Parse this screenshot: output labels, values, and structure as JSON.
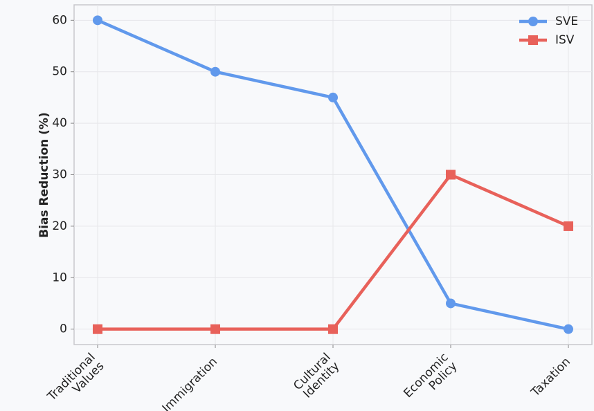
{
  "chart_data": {
    "type": "line",
    "ylabel": "Bias Reduction (%)",
    "categories": [
      "Traditional\nValues",
      "Immigration",
      "Cultural\nIdentity",
      "Economic\nPolicy",
      "Taxation"
    ],
    "series": [
      {
        "name": "SVE",
        "color": "#6199ec",
        "marker": "circle",
        "values": [
          60,
          50,
          45,
          5,
          0
        ]
      },
      {
        "name": "ISV",
        "color": "#e8615a",
        "marker": "square",
        "values": [
          0,
          0,
          0,
          30,
          20
        ]
      }
    ],
    "ylim": [
      -3,
      63
    ],
    "yticks": [
      0,
      10,
      20,
      30,
      40,
      50,
      60
    ],
    "grid": true,
    "legend": "upper right"
  }
}
